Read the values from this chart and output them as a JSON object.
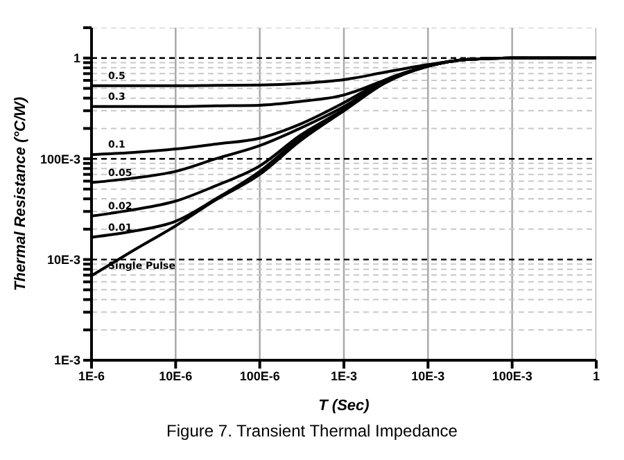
{
  "chart_data": {
    "type": "line",
    "title": "Figure 7. Transient Thermal Impedance",
    "xlabel": "T (Sec)",
    "ylabel": "Thermal Resistance (°C/W)",
    "log": "xy",
    "grid": true,
    "marker": "none",
    "line_style": "solid",
    "x": [
      1e-06,
      3e-06,
      1e-05,
      3e-05,
      0.0001,
      0.0003,
      0.001,
      0.003,
      0.01,
      0.03,
      0.1,
      1
    ],
    "series": [
      {
        "name": "0.5",
        "color": "#000000",
        "values": [
          0.53,
          0.53,
          0.53,
          0.535,
          0.54,
          0.56,
          0.61,
          0.72,
          0.86,
          0.97,
          1,
          1
        ]
      },
      {
        "name": "0.3",
        "color": "#000000",
        "values": [
          0.33,
          0.33,
          0.33,
          0.335,
          0.34,
          0.37,
          0.43,
          0.6,
          0.84,
          0.97,
          1,
          1
        ]
      },
      {
        "name": "0.1",
        "color": "#000000",
        "values": [
          0.11,
          0.115,
          0.125,
          0.14,
          0.16,
          0.22,
          0.36,
          0.6,
          0.83,
          0.97,
          1,
          1
        ]
      },
      {
        "name": "0.05",
        "color": "#000000",
        "values": [
          0.058,
          0.064,
          0.075,
          0.1,
          0.135,
          0.2,
          0.33,
          0.58,
          0.83,
          0.97,
          1,
          1
        ]
      },
      {
        "name": "0.02",
        "color": "#000000",
        "values": [
          0.027,
          0.031,
          0.038,
          0.054,
          0.085,
          0.17,
          0.31,
          0.57,
          0.83,
          0.97,
          1,
          1
        ]
      },
      {
        "name": "0.01",
        "color": "#000000",
        "values": [
          0.0166,
          0.019,
          0.024,
          0.04,
          0.075,
          0.16,
          0.3,
          0.56,
          0.83,
          0.97,
          1,
          1
        ]
      },
      {
        "name": "Single Pulse",
        "color": "#000000",
        "values": [
          0.0069,
          0.012,
          0.0216,
          0.039,
          0.07,
          0.15,
          0.3,
          0.56,
          0.83,
          0.97,
          1,
          1
        ]
      }
    ],
    "xlim": [
      1e-06,
      1
    ],
    "xticks": [
      {
        "value": 1e-06,
        "label": "1E-6"
      },
      {
        "value": 1e-05,
        "label": "10E-6"
      },
      {
        "value": 0.0001,
        "label": "100E-6"
      },
      {
        "value": 0.001,
        "label": "1E-3"
      },
      {
        "value": 0.01,
        "label": "10E-3"
      },
      {
        "value": 0.1,
        "label": "100E-3"
      },
      {
        "value": 1,
        "label": "1"
      }
    ],
    "ylim": [
      0.001,
      2
    ],
    "yticks": [
      {
        "value": 0.001,
        "label": "1E-3"
      },
      {
        "value": 0.002,
        "label": null
      },
      {
        "value": 0.003,
        "label": null
      },
      {
        "value": 0.004,
        "label": null
      },
      {
        "value": 0.005,
        "label": null
      },
      {
        "value": 0.006,
        "label": null
      },
      {
        "value": 0.007,
        "label": null
      },
      {
        "value": 0.008,
        "label": null
      },
      {
        "value": 0.009,
        "label": null
      },
      {
        "value": 0.01,
        "label": "10E-3"
      },
      {
        "value": 0.02,
        "label": null
      },
      {
        "value": 0.03,
        "label": null
      },
      {
        "value": 0.04,
        "label": null
      },
      {
        "value": 0.05,
        "label": null
      },
      {
        "value": 0.06,
        "label": null
      },
      {
        "value": 0.07,
        "label": null
      },
      {
        "value": 0.08,
        "label": null
      },
      {
        "value": 0.09,
        "label": null
      },
      {
        "value": 0.1,
        "label": "100E-3"
      },
      {
        "value": 0.2,
        "label": null
      },
      {
        "value": 0.3,
        "label": null
      },
      {
        "value": 0.4,
        "label": null
      },
      {
        "value": 0.5,
        "label": null
      },
      {
        "value": 0.6,
        "label": null
      },
      {
        "value": 0.7,
        "label": null
      },
      {
        "value": 0.8,
        "label": null
      },
      {
        "value": 0.9,
        "label": null
      },
      {
        "value": 1,
        "label": "1"
      },
      {
        "value": 2,
        "label": null
      }
    ]
  }
}
